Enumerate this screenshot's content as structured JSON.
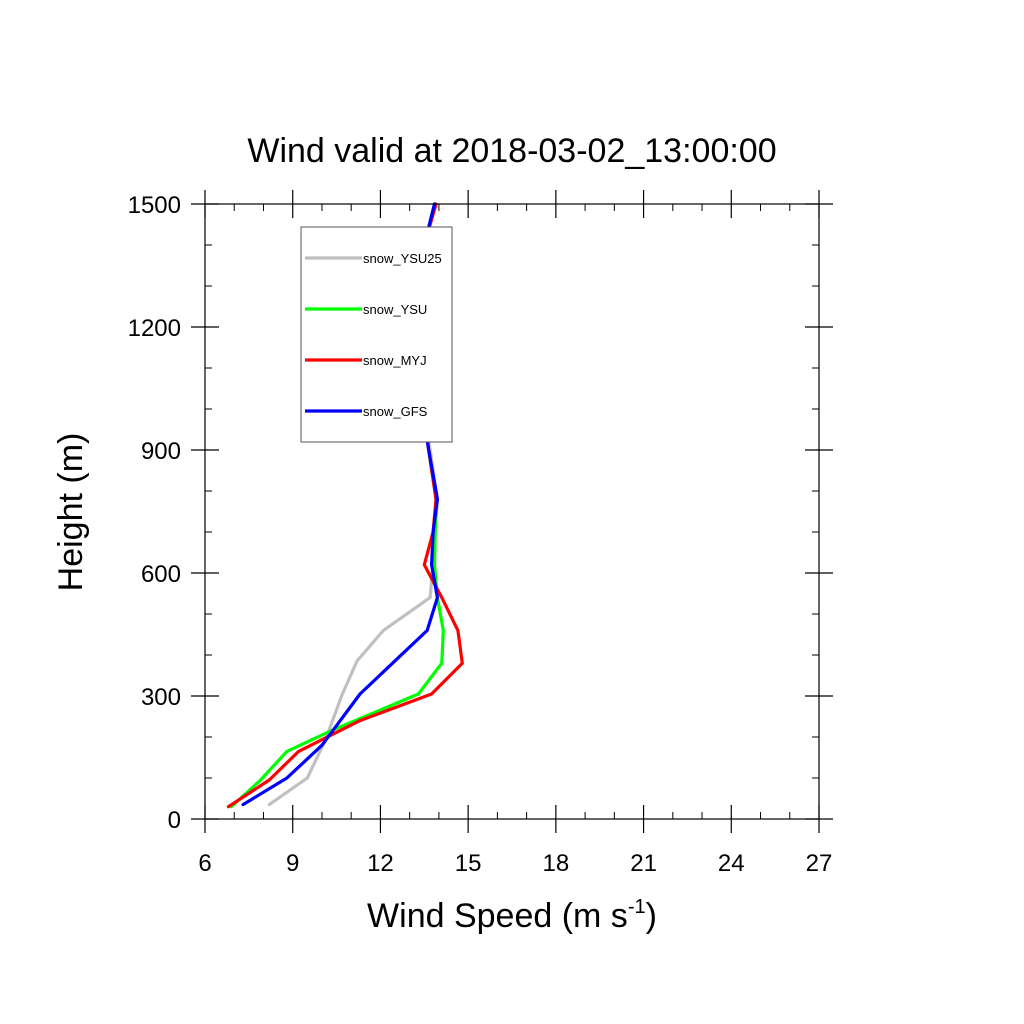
{
  "chart_data": {
    "type": "line",
    "title": "Wind valid at 2018-03-02_13:00:00",
    "xlabel": {
      "text": "Wind Speed (m s",
      "sup": "-1",
      "tail": ")"
    },
    "ylabel": "Height (m)",
    "xlim": [
      6,
      27
    ],
    "ylim": [
      0,
      1500
    ],
    "xticks": [
      6,
      9,
      12,
      15,
      18,
      21,
      24,
      27
    ],
    "xtick_labels": [
      "6",
      "9",
      "12",
      "15",
      "18",
      "21",
      "24",
      "27"
    ],
    "xminor_step": 1,
    "yticks": [
      0,
      300,
      600,
      900,
      1200,
      1500
    ],
    "ytick_labels": [
      "0",
      "300",
      "600",
      "900",
      "1200",
      "1500"
    ],
    "yminor_step": 100,
    "grid": false,
    "legend_position": "top-left",
    "series": [
      {
        "name": "snow_YSU25",
        "color": "#c0c0c0",
        "x": [
          8.2,
          9.5,
          10.1,
          10.7,
          11.2,
          12.1,
          13.7,
          13.8,
          13.95,
          13.7,
          13.45,
          13.1,
          13.15,
          13.5,
          13.85
        ],
        "y": [
          35,
          100,
          190,
          305,
          385,
          460,
          540,
          620,
          780,
          900,
          1020,
          1180,
          1285,
          1400,
          1500
        ]
      },
      {
        "name": "snow_YSU",
        "color": "#00ff00",
        "x": [
          6.9,
          7.9,
          8.8,
          10.3,
          13.3,
          14.1,
          14.15,
          13.95,
          13.85,
          13.9,
          13.65,
          13.4,
          13.05,
          13.15,
          13.5,
          13.85
        ],
        "y": [
          30,
          95,
          165,
          215,
          305,
          380,
          460,
          540,
          620,
          780,
          900,
          1020,
          1180,
          1285,
          1400,
          1500
        ]
      },
      {
        "name": "snow_MYJ",
        "color": "#ff0000",
        "x": [
          6.8,
          8.2,
          9.2,
          11.3,
          13.75,
          14.8,
          14.65,
          14.1,
          13.5,
          13.8,
          13.9,
          13.65,
          13.4,
          13.05,
          13.15,
          13.5,
          13.9
        ],
        "y": [
          30,
          95,
          165,
          240,
          305,
          380,
          460,
          540,
          620,
          700,
          780,
          900,
          1020,
          1180,
          1285,
          1400,
          1500
        ]
      },
      {
        "name": "snow_GFS",
        "color": "#0000ff",
        "x": [
          7.3,
          8.8,
          10.0,
          11.3,
          13.6,
          13.95,
          13.75,
          13.8,
          13.95,
          13.65,
          13.4,
          13.05,
          13.15,
          13.5,
          13.85
        ],
        "y": [
          35,
          100,
          180,
          305,
          460,
          540,
          620,
          700,
          780,
          900,
          1020,
          1180,
          1285,
          1400,
          1500
        ]
      }
    ]
  }
}
